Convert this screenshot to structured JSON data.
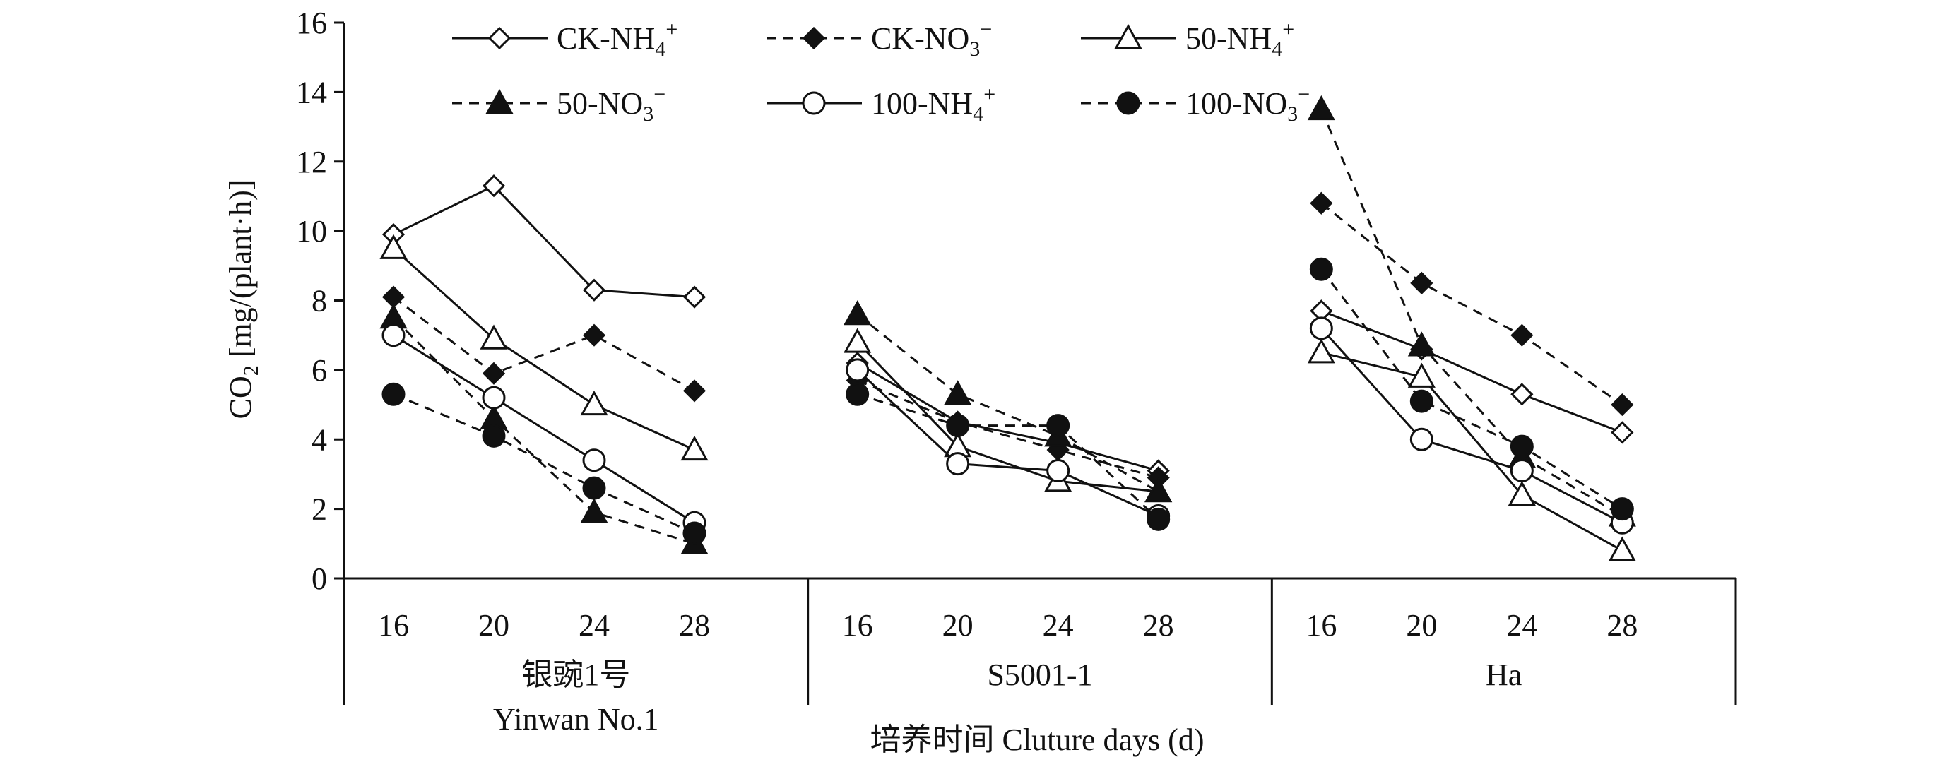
{
  "chart_data": {
    "type": "line",
    "ylabel_main": "CO",
    "ylabel_sub": "2",
    "ylabel_rest": " [mg/(plant·h)]",
    "xlabel": "培养时间 Cluture days (d)",
    "ylim": [
      0,
      16
    ],
    "yticks": [
      0,
      2,
      4,
      6,
      8,
      10,
      12,
      14,
      16
    ],
    "x": [
      16,
      20,
      24,
      28
    ],
    "groups": [
      {
        "label": "银豌1号",
        "label2": "Yinwan No.1"
      },
      {
        "label": "S5001-1",
        "label2": ""
      },
      {
        "label": "Ha",
        "label2": ""
      }
    ],
    "series": [
      {
        "base": "CK-NH",
        "sub": "4",
        "sup": "+",
        "marker": "diamond",
        "filled": false,
        "dashed": false,
        "values": [
          [
            9.9,
            11.3,
            8.3,
            8.1
          ],
          [
            6.2,
            4.5,
            3.9,
            3.1
          ],
          [
            7.7,
            6.6,
            5.3,
            4.2
          ]
        ]
      },
      {
        "base": "CK-NO",
        "sub": "3",
        "sup": "−",
        "marker": "diamond",
        "filled": true,
        "dashed": true,
        "values": [
          [
            8.1,
            5.9,
            7.0,
            5.4
          ],
          [
            5.7,
            4.5,
            3.7,
            2.9
          ],
          [
            10.8,
            8.5,
            7.0,
            5.0
          ]
        ]
      },
      {
        "base": "50-NH",
        "sub": "4",
        "sup": "+",
        "marker": "triangle",
        "filled": false,
        "dashed": false,
        "values": [
          [
            9.5,
            6.9,
            5.0,
            3.7
          ],
          [
            6.8,
            3.8,
            2.8,
            2.5
          ],
          [
            6.5,
            5.8,
            2.4,
            0.8
          ]
        ]
      },
      {
        "base": "50-NO",
        "sub": "3",
        "sup": "−",
        "marker": "triangle",
        "filled": true,
        "dashed": true,
        "values": [
          [
            7.5,
            4.6,
            1.9,
            1.0
          ],
          [
            7.6,
            5.3,
            4.1,
            2.5
          ],
          [
            13.5,
            6.7,
            3.5,
            1.8
          ]
        ]
      },
      {
        "base": "100-NH",
        "sub": "4",
        "sup": "+",
        "marker": "circle",
        "filled": false,
        "dashed": false,
        "values": [
          [
            7.0,
            5.2,
            3.4,
            1.6
          ],
          [
            6.0,
            3.3,
            3.1,
            1.8
          ],
          [
            7.2,
            4.0,
            3.1,
            1.6
          ]
        ]
      },
      {
        "base": "100-NO",
        "sub": "3",
        "sup": "−",
        "marker": "circle",
        "filled": true,
        "dashed": true,
        "values": [
          [
            5.3,
            4.1,
            2.6,
            1.3
          ],
          [
            5.3,
            4.4,
            4.4,
            1.7
          ],
          [
            8.9,
            5.1,
            3.8,
            2.0
          ]
        ]
      }
    ],
    "legend_position": "top-center",
    "grid": false
  }
}
